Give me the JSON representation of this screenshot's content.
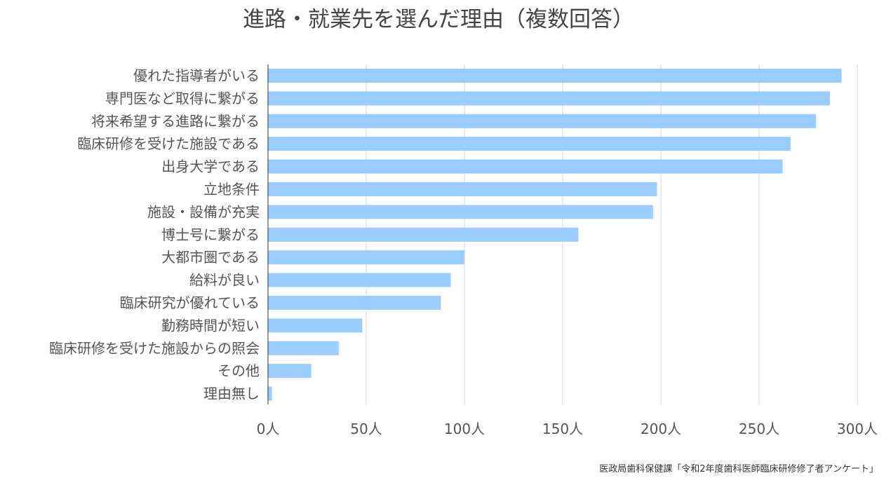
{
  "chart_data": {
    "type": "bar",
    "orientation": "horizontal",
    "title": "進路・就業先を選んだ理由（複数回答）",
    "xlabel": "",
    "ylabel": "",
    "categories": [
      "優れた指導者がいる",
      "専門医など取得に繋がる",
      "将来希望する進路に繋がる",
      "臨床研修を受けた施設である",
      "出身大学である",
      "立地条件",
      "施設・設備が充実",
      "博士号に繋がる",
      "大都市圏である",
      "給料が良い",
      "臨床研究が優れている",
      "勤務時間が短い",
      "臨床研修を受けた施設からの照会",
      "その他",
      "理由無し"
    ],
    "values": [
      292,
      286,
      279,
      266,
      262,
      198,
      196,
      158,
      100,
      93,
      88,
      48,
      36,
      22,
      2
    ],
    "xlim": [
      0,
      300
    ],
    "ticks": [
      0,
      50,
      100,
      150,
      200,
      250,
      300
    ],
    "tick_labels": [
      "0人",
      "50人",
      "100人",
      "150人",
      "200人",
      "250人",
      "300人"
    ],
    "grid": true,
    "legend": "none",
    "colors": {
      "bar": "#99ccff",
      "grid": "#d9d9d9",
      "axis": "#333333",
      "text": "#555555",
      "title": "#444444"
    }
  },
  "source": "医政局歯科保健課「令和2年度歯科医師臨床研修修了者アンケート」"
}
